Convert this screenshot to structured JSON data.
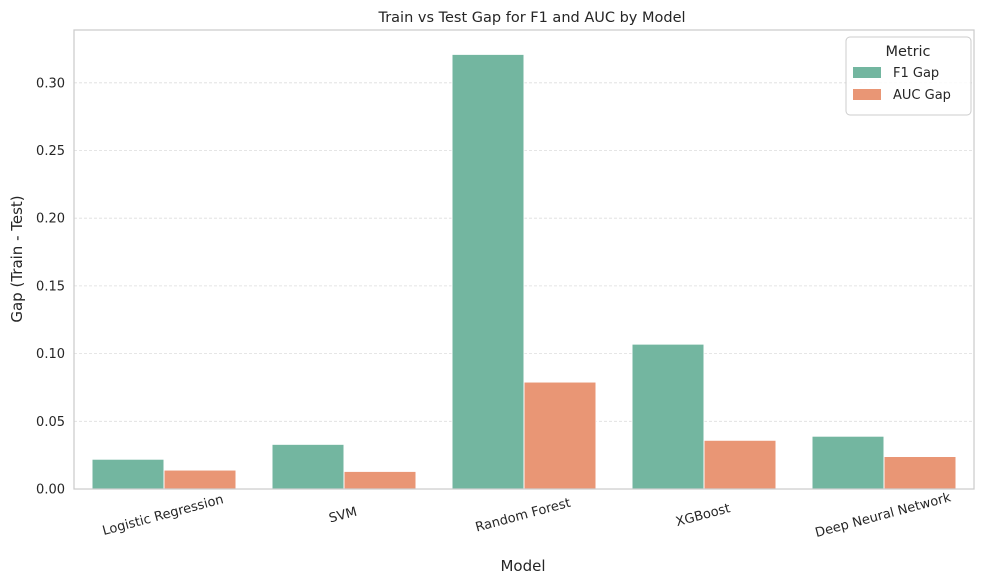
{
  "chart_data": {
    "type": "bar",
    "title": "Train vs Test Gap for F1 and AUC by Model",
    "xlabel": "Model",
    "ylabel": "Gap (Train - Test)",
    "categories": [
      "Logistic Regression",
      "SVM",
      "Random Forest",
      "XGBoost",
      "Deep Neural Network"
    ],
    "series": [
      {
        "name": "F1 Gap",
        "values": [
          0.022,
          0.033,
          0.321,
          0.107,
          0.039
        ],
        "color": "#73b6a0"
      },
      {
        "name": "AUC Gap",
        "values": [
          0.014,
          0.013,
          0.079,
          0.036,
          0.024
        ],
        "color": "#e99675"
      }
    ],
    "ylim": [
      0,
      0.339
    ],
    "yticks": [
      0.0,
      0.05,
      0.1,
      0.15,
      0.2,
      0.25,
      0.3
    ],
    "ytick_labels": [
      "0.00",
      "0.05",
      "0.10",
      "0.15",
      "0.20",
      "0.25",
      "0.30"
    ],
    "grid": "horizontal-dashed",
    "legend": {
      "title": "Metric",
      "placement": "top-right"
    },
    "xtick_rotation": 15
  }
}
